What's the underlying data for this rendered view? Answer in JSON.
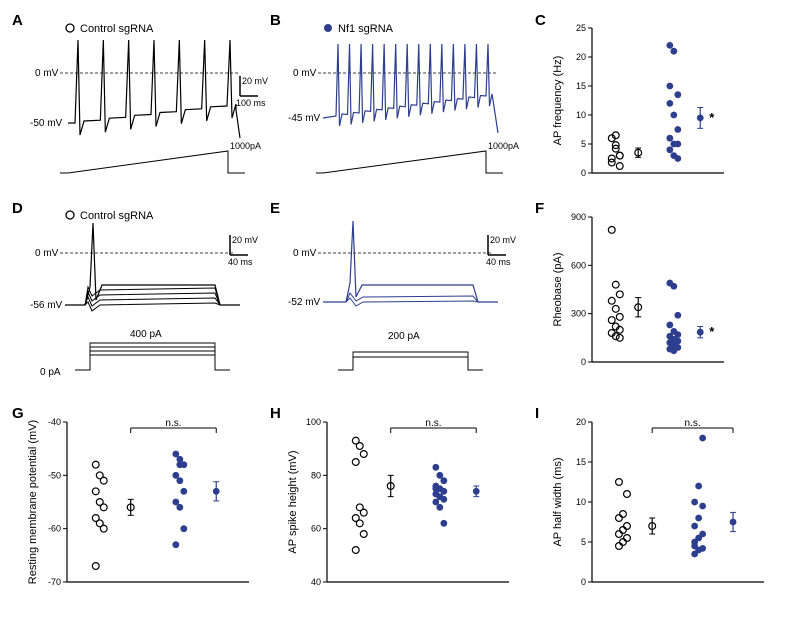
{
  "colors": {
    "control": "#000000",
    "nf1": "#2d3e8f",
    "bg": "#ffffff",
    "axis": "#000000"
  },
  "labels": {
    "panelA": "A",
    "panelB": "B",
    "panelC": "C",
    "panelD": "D",
    "panelE": "E",
    "panelF": "F",
    "panelG": "G",
    "panelH": "H",
    "panelI": "I",
    "control_legend": "Control sgRNA",
    "nf1_legend": "Nf1 sgRNA",
    "ns": "n.s.",
    "star": "*"
  },
  "panelA": {
    "vrest": "-50 mV",
    "zero": "0 mV",
    "ramp_max": "1000pA",
    "scale_v": "20 mV",
    "scale_t": "100 ms"
  },
  "panelB": {
    "vrest": "-45 mV",
    "zero": "0 mV",
    "ramp_max": "1000pA"
  },
  "panelC": {
    "ylabel": "AP frequency (Hz)",
    "ylim": [
      0,
      25
    ],
    "yticks": [
      0,
      5,
      10,
      15,
      20,
      25
    ],
    "control_points": [
      6.0,
      4.8,
      3.0,
      2.5,
      4.2,
      3.0,
      1.8,
      6.5,
      1.2
    ],
    "control_mean": 3.5,
    "control_sem": 0.8,
    "nf1_points": [
      22,
      21,
      13.5,
      12,
      10,
      7.5,
      6,
      5,
      5,
      4,
      3,
      2.5,
      15
    ],
    "nf1_mean": 9.5,
    "nf1_sem": 1.8
  },
  "panelD": {
    "vrest": "-56 mV",
    "zero": "0 mV",
    "current": "400 pA",
    "base": "0 pA",
    "scale_v": "20 mV",
    "scale_t": "40 ms"
  },
  "panelE": {
    "vrest": "-52 mV",
    "zero": "0 mV",
    "current": "200 pA",
    "scale_v": "20 mV",
    "scale_t": "40 ms"
  },
  "panelF": {
    "ylabel": "Rheobase (pA)",
    "ylim": [
      0,
      900
    ],
    "yticks": [
      0,
      300,
      600,
      900
    ],
    "control_points": [
      820,
      480,
      420,
      380,
      330,
      280,
      260,
      220,
      200,
      180,
      160,
      150
    ],
    "control_mean": 340,
    "control_sem": 60,
    "nf1_points": [
      490,
      470,
      290,
      230,
      190,
      170,
      160,
      140,
      130,
      120,
      100,
      90,
      80,
      70
    ],
    "nf1_mean": 185,
    "nf1_sem": 35
  },
  "panelG": {
    "ylabel": "Resting membrane potential (mV)",
    "ylim": [
      -70,
      -40
    ],
    "yticks": [
      -70,
      -60,
      -50,
      -40
    ],
    "control_points": [
      -48,
      -50,
      -51,
      -53,
      -55,
      -56,
      -58,
      -59,
      -60,
      -67
    ],
    "control_mean": -56,
    "control_sem": 1.5,
    "nf1_points": [
      -46,
      -47,
      -48,
      -50,
      -51,
      -53,
      -55,
      -56,
      -60,
      -63,
      -48
    ],
    "nf1_mean": -53,
    "nf1_sem": 1.8
  },
  "panelH": {
    "ylabel": "AP spike height (mV)",
    "ylim": [
      40,
      100
    ],
    "yticks": [
      40,
      60,
      80,
      100
    ],
    "control_points": [
      93,
      91,
      88,
      85,
      68,
      66,
      64,
      62,
      58,
      52
    ],
    "control_mean": 76,
    "control_sem": 4,
    "nf1_points": [
      83,
      80,
      78,
      76,
      75,
      74,
      73,
      72,
      71,
      70,
      68,
      62,
      75
    ],
    "nf1_mean": 74,
    "nf1_sem": 2
  },
  "panelI": {
    "ylabel": "AP half width (ms)",
    "ylim": [
      0,
      20
    ],
    "yticks": [
      0,
      5,
      10,
      15,
      20
    ],
    "control_points": [
      4.5,
      5,
      5.5,
      6,
      6.5,
      7,
      8,
      8.5,
      11,
      12.5
    ],
    "control_mean": 7,
    "control_sem": 1,
    "nf1_points": [
      3.5,
      4,
      4.2,
      4.5,
      5.5,
      6,
      7,
      8,
      9.5,
      10,
      12,
      18,
      5
    ],
    "nf1_mean": 7.5,
    "nf1_sem": 1.2
  }
}
